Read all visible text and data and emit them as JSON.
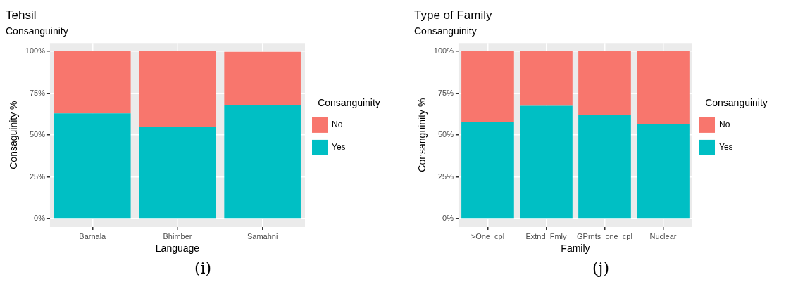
{
  "chart_data": [
    {
      "type": "bar",
      "title": "Tehsil",
      "subtitle": "Consanguinity",
      "xlabel": "Language",
      "ylabel": "Consaguinity %",
      "legend_title": "Consanguinity",
      "legend": "right",
      "stacked": true,
      "grid": true,
      "categories": [
        "Barnala",
        "Bhimber",
        "Samahni"
      ],
      "ylim": [
        -5,
        105
      ],
      "yticks": [
        {
          "value": 0,
          "label": "0%"
        },
        {
          "value": 25,
          "label": "25%"
        },
        {
          "value": 50,
          "label": "50%"
        },
        {
          "value": 75,
          "label": "75%"
        },
        {
          "value": 100,
          "label": "100%"
        }
      ],
      "series": [
        {
          "name": "Yes",
          "color": "#00bfc4",
          "values": [
            63,
            55,
            68
          ]
        },
        {
          "name": "No",
          "color": "#f8766d",
          "values": [
            37,
            45,
            31.7
          ]
        }
      ],
      "annotations": [
        "(i)"
      ]
    },
    {
      "type": "bar",
      "title": "Type of Family",
      "subtitle": "Consanguinity",
      "xlabel": "Family",
      "ylabel": "Consanguinity %",
      "legend_title": "Consanguinity",
      "legend": "right",
      "stacked": true,
      "grid": true,
      "categories": [
        ">One_cpl",
        "Extnd_Fmly",
        "GPrnts_one_cpl",
        "Nuclear"
      ],
      "ylim": [
        -5,
        105
      ],
      "yticks": [
        {
          "value": 0,
          "label": "0%"
        },
        {
          "value": 25,
          "label": "25%"
        },
        {
          "value": 50,
          "label": "50%"
        },
        {
          "value": 75,
          "label": "75%"
        },
        {
          "value": 100,
          "label": "100%"
        }
      ],
      "series": [
        {
          "name": "Yes",
          "color": "#00bfc4",
          "values": [
            58,
            67.5,
            62,
            56.5
          ]
        },
        {
          "name": "No",
          "color": "#f8766d",
          "values": [
            42,
            32.5,
            38,
            43.5
          ]
        }
      ],
      "annotations": [
        "(j)"
      ]
    }
  ]
}
